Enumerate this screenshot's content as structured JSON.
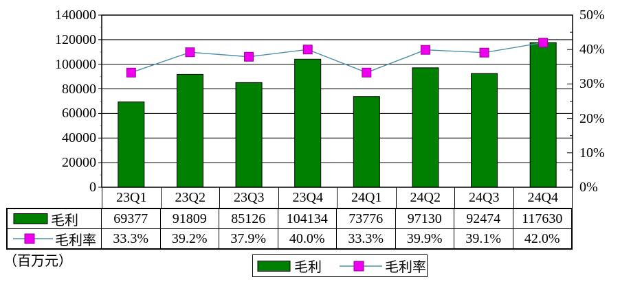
{
  "chart_data": {
    "type": "bar",
    "subtype": "bar-line-combo",
    "categories": [
      "23Q1",
      "23Q2",
      "23Q3",
      "23Q4",
      "24Q1",
      "24Q2",
      "24Q3",
      "24Q4"
    ],
    "series": [
      {
        "name": "毛利",
        "type": "bar",
        "axis": "left",
        "color": "#008000",
        "border_color": "#000000",
        "values": [
          69377,
          91809,
          85126,
          104134,
          73776,
          97130,
          92474,
          117630
        ]
      },
      {
        "name": "毛利率",
        "type": "line",
        "axis": "right",
        "line_color": "#4A8FA8",
        "marker_color": "#EE00EE",
        "marker_border": "#990099",
        "values": [
          33.3,
          39.2,
          37.9,
          40.0,
          33.3,
          39.9,
          39.1,
          42.0
        ],
        "labels": [
          "33.3%",
          "39.2%",
          "37.9%",
          "40.0%",
          "33.3%",
          "39.9%",
          "39.1%",
          "42.0%"
        ]
      }
    ],
    "left_axis": {
      "min": 0,
      "max": 140000,
      "step": 20000,
      "labels": [
        "140000",
        "120000",
        "100000",
        "80000",
        "60000",
        "40000",
        "20000",
        "0"
      ]
    },
    "right_axis": {
      "min": 0,
      "max": 50,
      "step": 10,
      "labels": [
        "50%",
        "40%",
        "30%",
        "20%",
        "10%",
        "0%"
      ]
    },
    "unit_label": "（百万元）",
    "grid": "horizontal",
    "legend_position": "bottom",
    "legend": [
      "毛利",
      "毛利率"
    ]
  }
}
